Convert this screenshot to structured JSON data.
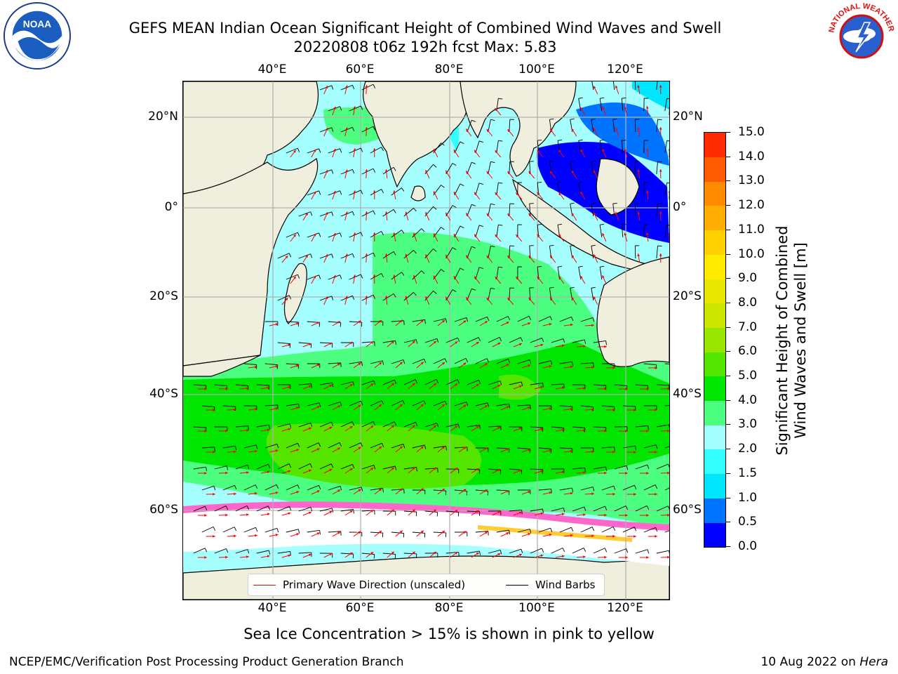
{
  "header": {
    "title_line1": "GEFS MEAN Indian Ocean Significant Height of Combined Wind Waves and Swell",
    "title_line2": "20220808 t06z 192h fcst   Max: 5.83"
  },
  "logos": {
    "noaa": {
      "text": "NOAA",
      "ring_text": "NATIONAL OCEANIC AND ATMOSPHERIC ADMINISTRATION · U.S. DEPARTMENT OF COMMERCE"
    },
    "nws": {
      "ring_text": "NATIONAL WEATHER SERVICE"
    }
  },
  "map": {
    "lon_labels": [
      "40°E",
      "60°E",
      "80°E",
      "100°E",
      "120°E"
    ],
    "lat_labels": [
      "20°N",
      "0°",
      "20°S",
      "40°S",
      "60°S"
    ],
    "land_color": "#f0eedc",
    "gridline_color": "#b0b0b0"
  },
  "legend": {
    "items": [
      {
        "label": "Primary Wave Direction (unscaled)",
        "color": "#ff0000"
      },
      {
        "label": "Wind Barbs",
        "color": "#000000"
      }
    ]
  },
  "colorbar": {
    "title_line1": "Significant Height of Combined",
    "title_line2": "Wind Waves and Swell [m]",
    "ticks": [
      "0.0",
      "0.5",
      "1.0",
      "1.5",
      "2.0",
      "3.0",
      "4.0",
      "5.0",
      "6.0",
      "7.0",
      "8.0",
      "9.0",
      "10.0",
      "11.0",
      "12.0",
      "13.0",
      "14.0",
      "15.0"
    ],
    "colors": [
      "#0000ff",
      "#0073ff",
      "#00e6ff",
      "#33ffff",
      "#a6ffff",
      "#4dff80",
      "#00e600",
      "#55e600",
      "#99e600",
      "#cce600",
      "#e6e600",
      "#ffea00",
      "#ffd100",
      "#ffad00",
      "#ff8c00",
      "#ff5a00",
      "#ff2a00"
    ]
  },
  "notes": {
    "ice": "Sea Ice Concentration > 15% is shown in pink to yellow"
  },
  "footer": {
    "left": "NCEP/EMC/Verification Post Processing Product Generation Branch",
    "right_prefix": "10 Aug 2022 on ",
    "right_machine": "Hera"
  }
}
